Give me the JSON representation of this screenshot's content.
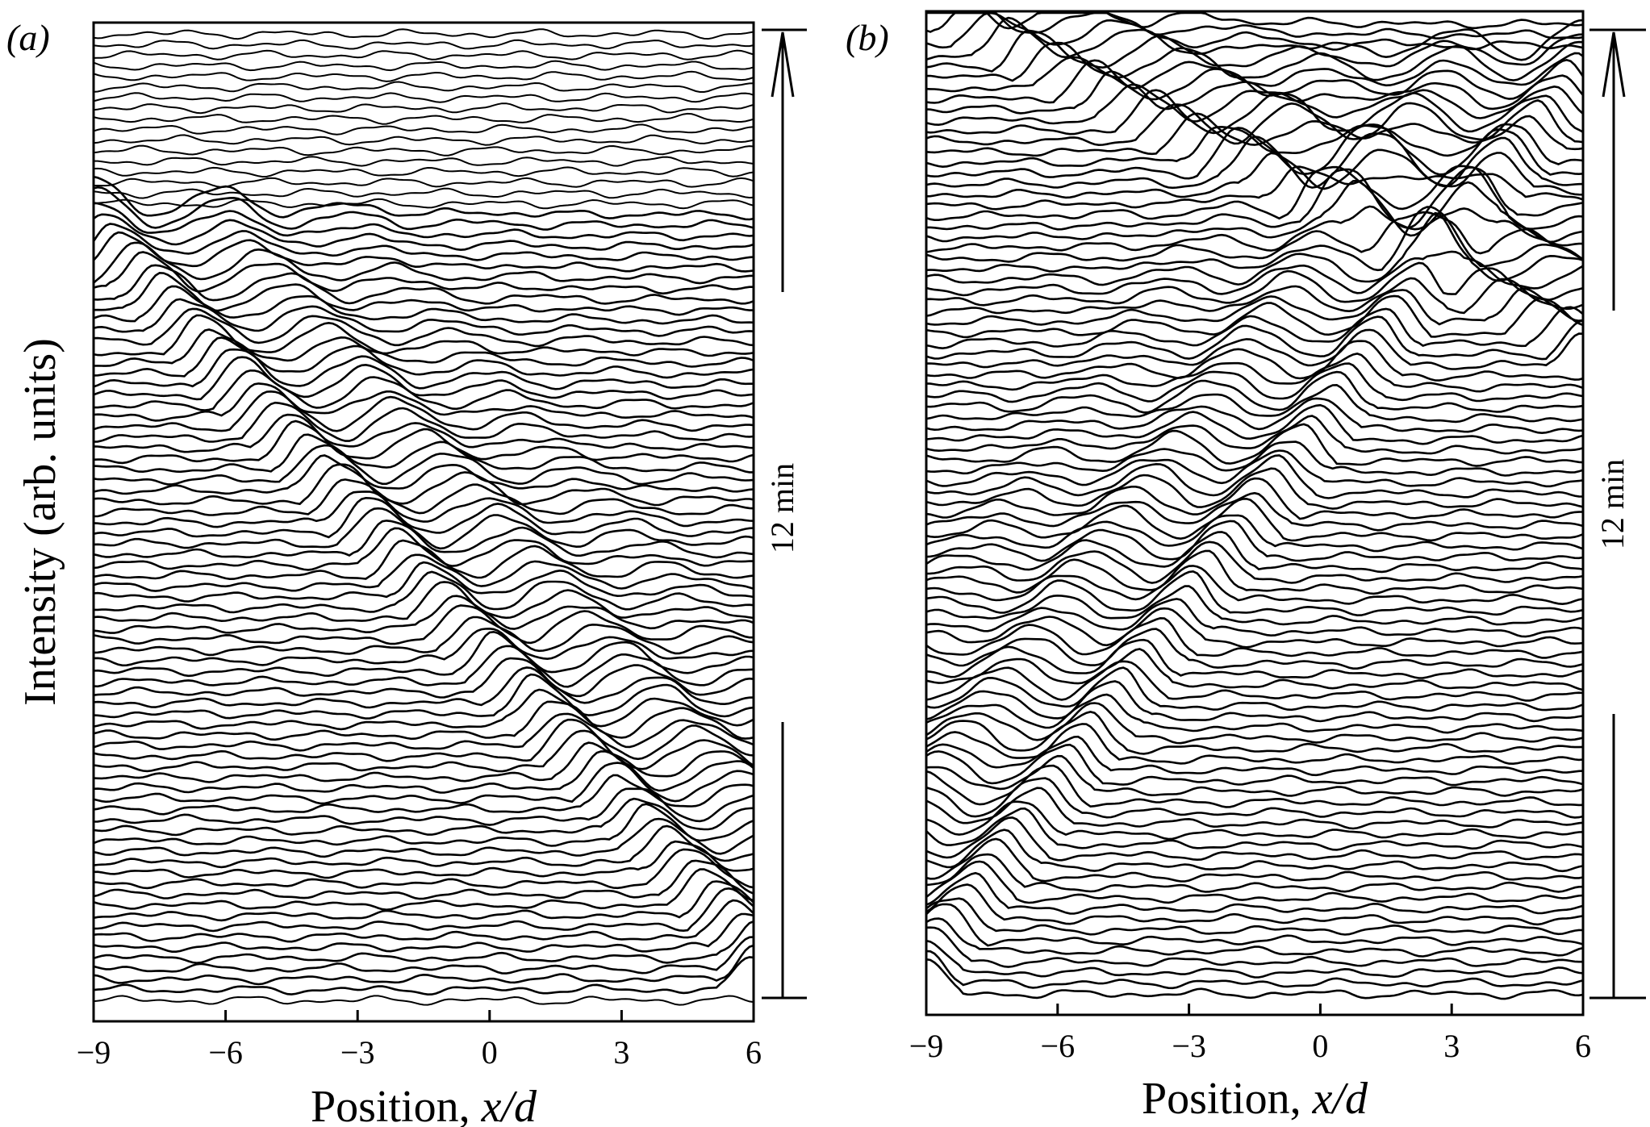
{
  "chart_data": [
    {
      "type": "line",
      "panel_label": "(a)",
      "xlabel_text": "Position, ",
      "xlabel_italic": "x/d",
      "ylabel": "Intensity (arb. units)",
      "xlim": [
        -9,
        6
      ],
      "xticks": [
        -9,
        -6,
        -3,
        0,
        3,
        6
      ],
      "xtick_labels": [
        "−9",
        "−6",
        "−3",
        "0",
        "3",
        "6"
      ],
      "grid": false,
      "legend": "none",
      "time_scale_label": "12 min",
      "trace_count": 92,
      "time_direction": "upward",
      "wavefronts": [
        {
          "description": "pattern propagating leftward, emerging from right edge",
          "start": {
            "x": 6.0,
            "trace": 4
          },
          "end": {
            "x": -9.0,
            "trace": 72
          }
        }
      ]
    },
    {
      "type": "line",
      "panel_label": "(b)",
      "xlabel_text": "Position, ",
      "xlabel_italic": "x/d",
      "ylabel": "",
      "xlim": [
        -9,
        6
      ],
      "xticks": [
        -9,
        -6,
        -3,
        0,
        3,
        6
      ],
      "xtick_labels": [
        "−9",
        "−6",
        "−3",
        "0",
        "3",
        "6"
      ],
      "grid": false,
      "legend": "none",
      "time_scale_label": "12 min",
      "trace_count": 92,
      "time_direction": "upward",
      "wavefronts": [
        {
          "description": "rightward-moving pattern from left edge",
          "start": {
            "x": -9.0,
            "trace": 2
          },
          "end": {
            "x": 6.0,
            "trace": 86
          }
        },
        {
          "description": "reflected pattern moving leftward",
          "start": {
            "x": 6.0,
            "trace": 60
          },
          "end": {
            "x": -9.0,
            "trace": 92
          }
        }
      ]
    }
  ]
}
